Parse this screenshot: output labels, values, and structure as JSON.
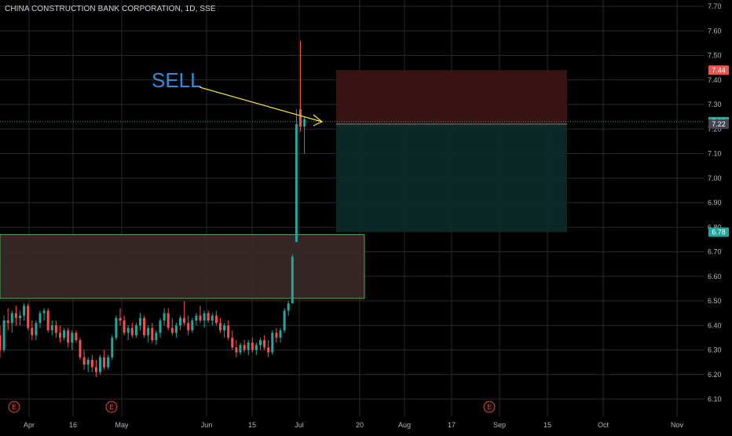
{
  "header": {
    "title": "CHINA CONSTRUCTION BANK CORPORATION, 1D, SSE"
  },
  "colors": {
    "up": "#26a69a",
    "down": "#ef5350",
    "grid": "#2a2a2e",
    "zone_fill": "#3b2a2a",
    "zone_border": "#4caf50",
    "stop_fill": "#3a1414",
    "target_fill": "#0b2a26",
    "arrow": "#f5e642",
    "sell_text": "#2f8cdb",
    "tag_red": "#ef5350",
    "tag_green": "#26a69a",
    "tag_gray": "#434651"
  },
  "annotations": {
    "sell_label": "SELL",
    "earnings_marker": "E"
  },
  "chart_data": {
    "type": "candlestick",
    "title": "CHINA CONSTRUCTION BANK CORPORATION, 1D, SSE",
    "y_ticks": [
      "7.70",
      "7.60",
      "7.50",
      "7.40",
      "7.30",
      "7.20",
      "7.10",
      "7.00",
      "6.90",
      "6.80",
      "6.70",
      "6.60",
      "6.50",
      "6.40",
      "6.30",
      "6.20",
      "6.10"
    ],
    "ylim": [
      6.06,
      7.72
    ],
    "x_ticks": [
      "Apr",
      "16",
      "May",
      "Jun",
      "15",
      "Jul",
      "20",
      "Aug",
      "17",
      "Sep",
      "15",
      "Oct",
      "Nov"
    ],
    "price_tags": [
      {
        "value": 7.44,
        "label": "7.44",
        "color": "red"
      },
      {
        "value": 7.23,
        "label": "7.23",
        "color": "green"
      },
      {
        "value": 7.22,
        "label": "7.22",
        "color": "gray"
      },
      {
        "value": 6.78,
        "label": "6.78",
        "color": "green"
      }
    ],
    "entry_price": 7.22,
    "stop_price": 7.44,
    "target_price": 6.78,
    "supply_zone": [
      6.51,
      6.77
    ],
    "earnings_markers": 3,
    "candles": [
      [
        6.36,
        6.4,
        6.27,
        6.3
      ],
      [
        6.3,
        6.44,
        6.29,
        6.42
      ],
      [
        6.42,
        6.47,
        6.38,
        6.41
      ],
      [
        6.41,
        6.46,
        6.37,
        6.45
      ],
      [
        6.45,
        6.48,
        6.4,
        6.43
      ],
      [
        6.43,
        6.46,
        6.4,
        6.44
      ],
      [
        6.44,
        6.49,
        6.42,
        6.48
      ],
      [
        6.48,
        6.49,
        6.38,
        6.39
      ],
      [
        6.39,
        6.42,
        6.34,
        6.36
      ],
      [
        6.36,
        6.42,
        6.34,
        6.41
      ],
      [
        6.41,
        6.46,
        6.39,
        6.45
      ],
      [
        6.45,
        6.47,
        6.42,
        6.46
      ],
      [
        6.46,
        6.47,
        6.37,
        6.38
      ],
      [
        6.38,
        6.42,
        6.36,
        6.4
      ],
      [
        6.4,
        6.42,
        6.35,
        6.37
      ],
      [
        6.37,
        6.4,
        6.33,
        6.35
      ],
      [
        6.35,
        6.39,
        6.34,
        6.38
      ],
      [
        6.38,
        6.39,
        6.31,
        6.33
      ],
      [
        6.33,
        6.38,
        6.3,
        6.37
      ],
      [
        6.37,
        6.38,
        6.33,
        6.34
      ],
      [
        6.34,
        6.35,
        6.26,
        6.27
      ],
      [
        6.27,
        6.3,
        6.22,
        6.24
      ],
      [
        6.24,
        6.27,
        6.21,
        6.26
      ],
      [
        6.26,
        6.28,
        6.21,
        6.23
      ],
      [
        6.23,
        6.26,
        6.19,
        6.21
      ],
      [
        6.21,
        6.28,
        6.2,
        6.27
      ],
      [
        6.27,
        6.3,
        6.22,
        6.23
      ],
      [
        6.23,
        6.28,
        6.22,
        6.27
      ],
      [
        6.27,
        6.36,
        6.26,
        6.35
      ],
      [
        6.35,
        6.44,
        6.34,
        6.43
      ],
      [
        6.43,
        6.47,
        6.4,
        6.42
      ],
      [
        6.42,
        6.44,
        6.36,
        6.37
      ],
      [
        6.37,
        6.4,
        6.34,
        6.39
      ],
      [
        6.39,
        6.41,
        6.35,
        6.36
      ],
      [
        6.36,
        6.41,
        6.35,
        6.4
      ],
      [
        6.4,
        6.45,
        6.38,
        6.43
      ],
      [
        6.43,
        6.44,
        6.35,
        6.36
      ],
      [
        6.36,
        6.4,
        6.33,
        6.39
      ],
      [
        6.39,
        6.41,
        6.33,
        6.34
      ],
      [
        6.34,
        6.38,
        6.32,
        6.37
      ],
      [
        6.37,
        6.43,
        6.35,
        6.42
      ],
      [
        6.42,
        6.47,
        6.4,
        6.45
      ],
      [
        6.45,
        6.47,
        6.38,
        6.39
      ],
      [
        6.39,
        6.43,
        6.36,
        6.37
      ],
      [
        6.37,
        6.41,
        6.35,
        6.4
      ],
      [
        6.4,
        6.44,
        6.38,
        6.43
      ],
      [
        6.43,
        6.5,
        6.4,
        6.41
      ],
      [
        6.41,
        6.44,
        6.36,
        6.38
      ],
      [
        6.38,
        6.43,
        6.37,
        6.42
      ],
      [
        6.42,
        6.45,
        6.4,
        6.44
      ],
      [
        6.44,
        6.48,
        6.41,
        6.42
      ],
      [
        6.42,
        6.46,
        6.39,
        6.45
      ],
      [
        6.45,
        6.46,
        6.41,
        6.42
      ],
      [
        6.42,
        6.45,
        6.4,
        6.44
      ],
      [
        6.44,
        6.46,
        6.4,
        6.41
      ],
      [
        6.41,
        6.43,
        6.37,
        6.38
      ],
      [
        6.38,
        6.41,
        6.35,
        6.4
      ],
      [
        6.4,
        6.42,
        6.34,
        6.35
      ],
      [
        6.35,
        6.38,
        6.3,
        6.31
      ],
      [
        6.31,
        6.34,
        6.27,
        6.29
      ],
      [
        6.29,
        6.33,
        6.28,
        6.32
      ],
      [
        6.32,
        6.34,
        6.29,
        6.3
      ],
      [
        6.3,
        6.34,
        6.28,
        6.33
      ],
      [
        6.33,
        6.35,
        6.29,
        6.3
      ],
      [
        6.3,
        6.33,
        6.28,
        6.32
      ],
      [
        6.32,
        6.35,
        6.3,
        6.34
      ],
      [
        6.34,
        6.36,
        6.3,
        6.31
      ],
      [
        6.31,
        6.34,
        6.27,
        6.29
      ],
      [
        6.29,
        6.38,
        6.28,
        6.37
      ],
      [
        6.37,
        6.39,
        6.33,
        6.35
      ],
      [
        6.35,
        6.39,
        6.33,
        6.38
      ],
      [
        6.38,
        6.47,
        6.37,
        6.46
      ],
      [
        6.46,
        6.5,
        6.44,
        6.49
      ],
      [
        6.49,
        6.69,
        6.49,
        6.68
      ],
      [
        6.74,
        7.28,
        6.74,
        7.22
      ],
      [
        7.28,
        7.56,
        7.19,
        7.21
      ],
      [
        7.21,
        7.25,
        7.1,
        7.24
      ]
    ]
  }
}
